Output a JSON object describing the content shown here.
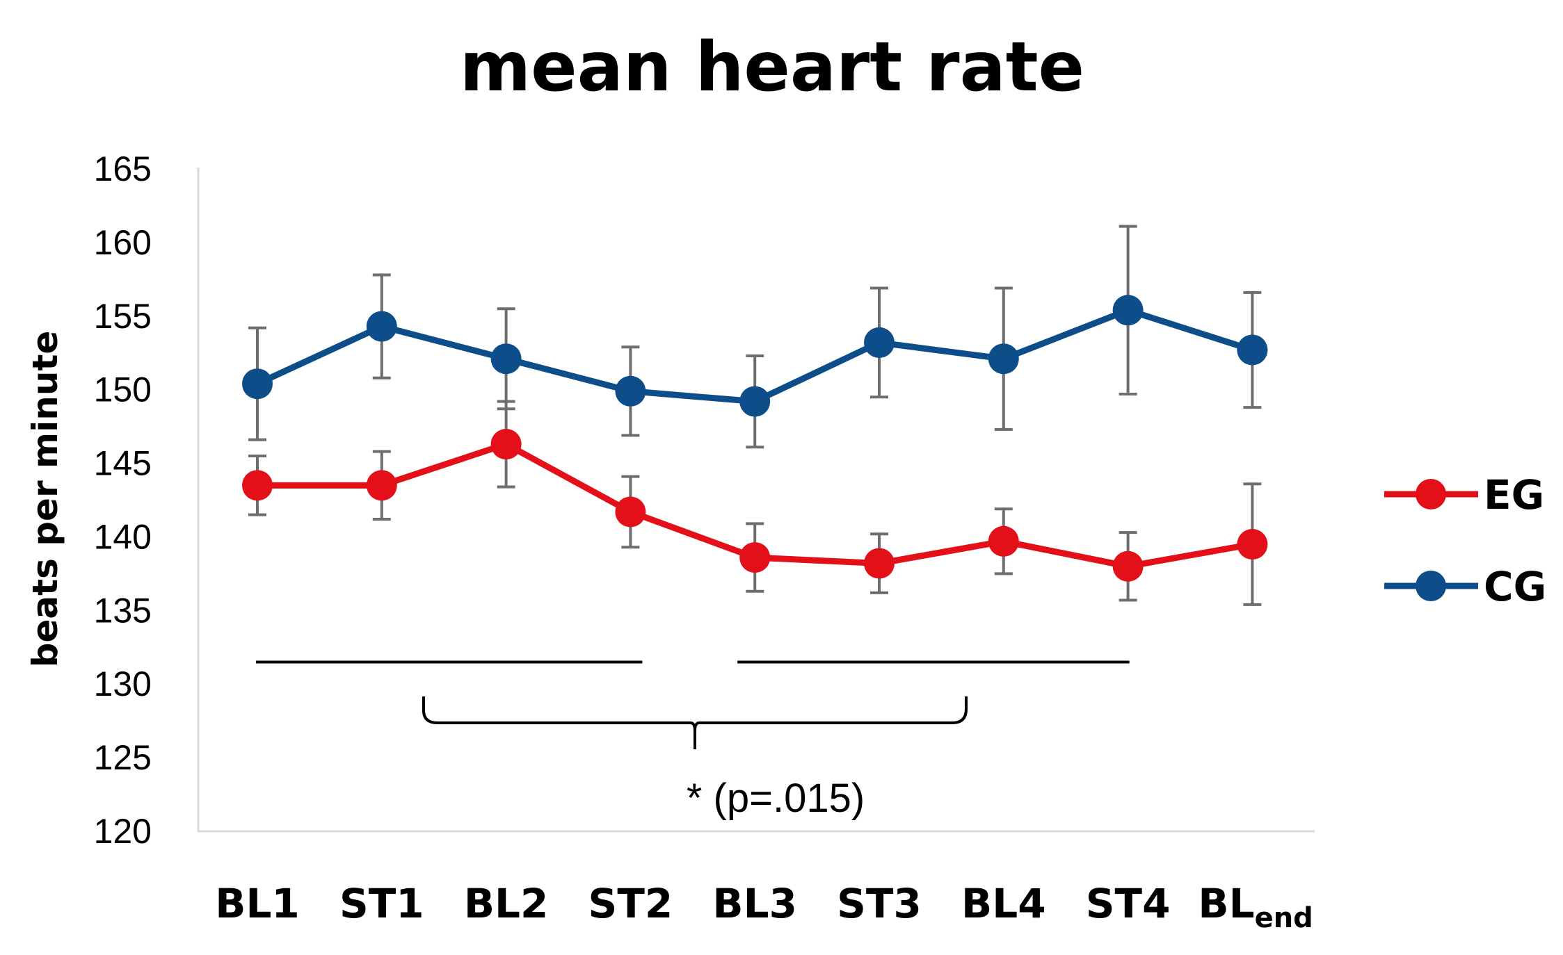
{
  "chart_data": {
    "type": "line",
    "title": "mean heart rate",
    "xlabel": "",
    "ylabel": "beats per minute",
    "ylim": [
      120,
      165
    ],
    "yticks": [
      "120",
      "125",
      "130",
      "135",
      "140",
      "145",
      "150",
      "155",
      "160",
      "165"
    ],
    "categories": [
      "BL1",
      "ST1",
      "BL2",
      "ST2",
      "BL3",
      "ST3",
      "BL4",
      "ST4",
      "BL"
    ],
    "last_category_subscript": "end",
    "grid": false,
    "legend_position": "right",
    "series": [
      {
        "name": "EG",
        "color": "#e3101a",
        "values": [
          143.5,
          143.5,
          146.3,
          141.7,
          138.6,
          138.2,
          139.7,
          138.0,
          139.5
        ],
        "error": [
          2.0,
          2.3,
          2.9,
          2.4,
          2.3,
          2.0,
          2.2,
          2.3,
          4.1
        ]
      },
      {
        "name": "CG",
        "color": "#0d4d8a",
        "values": [
          150.4,
          154.3,
          152.1,
          149.9,
          149.2,
          153.2,
          152.1,
          155.4,
          152.7
        ],
        "error": [
          3.8,
          3.5,
          3.4,
          3.0,
          3.1,
          3.7,
          4.8,
          5.7,
          3.9
        ]
      }
    ],
    "annotation": {
      "text": "* (p=.015)",
      "bracket_left_range": [
        "BL1",
        "ST2"
      ],
      "bracket_right_range": [
        "BL3",
        "ST4"
      ],
      "bracket_value": 131.5
    }
  }
}
